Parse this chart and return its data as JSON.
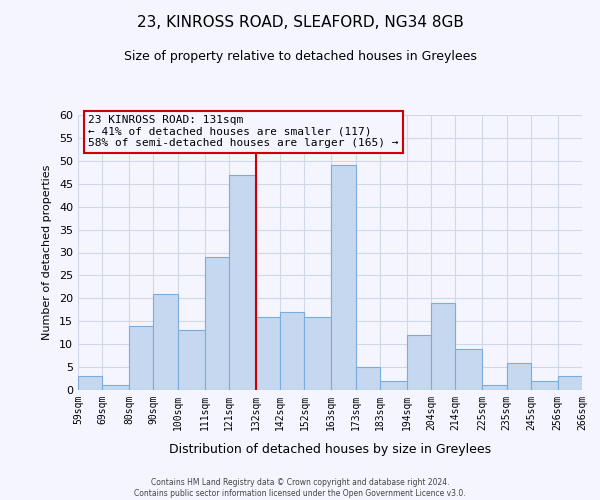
{
  "title": "23, KINROSS ROAD, SLEAFORD, NG34 8GB",
  "subtitle": "Size of property relative to detached houses in Greylees",
  "xlabel": "Distribution of detached houses by size in Greylees",
  "ylabel": "Number of detached properties",
  "footer_line1": "Contains HM Land Registry data © Crown copyright and database right 2024.",
  "footer_line2": "Contains public sector information licensed under the Open Government Licence v3.0.",
  "annotation_line1": "23 KINROSS ROAD: 131sqm",
  "annotation_line2": "← 41% of detached houses are smaller (117)",
  "annotation_line3": "58% of semi-detached houses are larger (165) →",
  "bar_edges": [
    59,
    69,
    80,
    90,
    100,
    111,
    121,
    132,
    142,
    152,
    163,
    173,
    183,
    194,
    204,
    214,
    225,
    235,
    245,
    256,
    266
  ],
  "bar_heights": [
    3,
    1,
    14,
    21,
    13,
    29,
    47,
    16,
    17,
    16,
    49,
    5,
    2,
    12,
    19,
    9,
    1,
    6,
    2,
    3
  ],
  "bar_color": "#c5d8f0",
  "bar_edge_color": "#7aacdc",
  "vline_x": 132,
  "vline_color": "#cc0000",
  "ylim": [
    0,
    60
  ],
  "yticks": [
    0,
    5,
    10,
    15,
    20,
    25,
    30,
    35,
    40,
    45,
    50,
    55,
    60
  ],
  "annotation_box_edge_color": "#cc0000",
  "background_color": "#f5f5ff",
  "grid_color": "#d0d8e8"
}
